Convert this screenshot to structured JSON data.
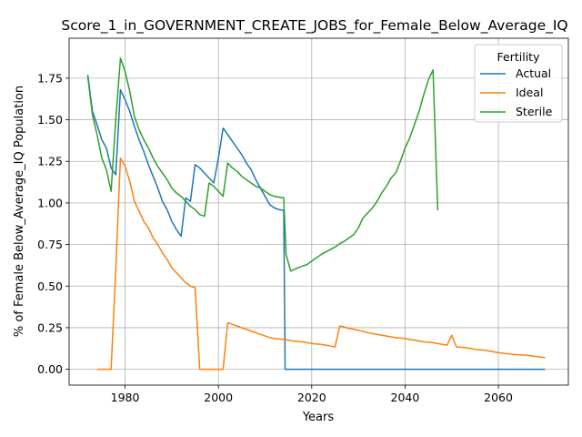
{
  "chart_data": {
    "type": "line",
    "title": "Score_1_in_GOVERNMENT_CREATE_JOBS_for_Female_Below_Average_IQ",
    "xlabel": "Years",
    "ylabel": "% of Female Below_Average_IQ Population",
    "xlim": [
      1968,
      2075
    ],
    "ylim": [
      -0.095,
      1.99
    ],
    "x_ticks": [
      1980,
      2000,
      2020,
      2040,
      2060
    ],
    "y_ticks": [
      0.0,
      0.25,
      0.5,
      0.75,
      1.0,
      1.25,
      1.5,
      1.75
    ],
    "grid": true,
    "legend": {
      "title": "Fertility",
      "placement": "top-right"
    },
    "series": [
      {
        "name": "Actual",
        "color": "#1f77b4",
        "points": [
          [
            1972,
            1.77
          ],
          [
            1973,
            1.55
          ],
          [
            1974,
            1.47
          ],
          [
            1975,
            1.38
          ],
          [
            1976,
            1.33
          ],
          [
            1977,
            1.21
          ],
          [
            1978,
            1.17
          ],
          [
            1979,
            1.68
          ],
          [
            1980,
            1.62
          ],
          [
            1981,
            1.55
          ],
          [
            1982,
            1.46
          ],
          [
            1983,
            1.38
          ],
          [
            1984,
            1.31
          ],
          [
            1985,
            1.23
          ],
          [
            1986,
            1.16
          ],
          [
            1987,
            1.09
          ],
          [
            1988,
            1.01
          ],
          [
            1989,
            0.96
          ],
          [
            1990,
            0.89
          ],
          [
            1991,
            0.84
          ],
          [
            1992,
            0.8
          ],
          [
            1993,
            1.03
          ],
          [
            1994,
            1.01
          ],
          [
            1995,
            1.23
          ],
          [
            1996,
            1.21
          ],
          [
            1997,
            1.18
          ],
          [
            1998,
            1.15
          ],
          [
            1999,
            1.12
          ],
          [
            2000,
            1.27
          ],
          [
            2001,
            1.45
          ],
          [
            2002,
            1.41
          ],
          [
            2003,
            1.37
          ],
          [
            2004,
            1.33
          ],
          [
            2005,
            1.29
          ],
          [
            2006,
            1.24
          ],
          [
            2007,
            1.2
          ],
          [
            2008,
            1.14
          ],
          [
            2009,
            1.09
          ],
          [
            2010,
            1.04
          ],
          [
            2011,
            0.99
          ],
          [
            2012,
            0.97
          ],
          [
            2013,
            0.96
          ],
          [
            2014,
            0.955
          ],
          [
            2014.3,
            0.0
          ],
          [
            2020,
            0.0
          ],
          [
            2030,
            0.0
          ],
          [
            2040,
            0.0
          ],
          [
            2050,
            0.0
          ],
          [
            2060,
            0.0
          ],
          [
            2070,
            0.0
          ]
        ]
      },
      {
        "name": "Ideal",
        "color": "#ff7f0e",
        "points": [
          [
            1974,
            0.0
          ],
          [
            1977,
            0.0
          ],
          [
            1978,
            0.6
          ],
          [
            1979,
            1.27
          ],
          [
            1980,
            1.22
          ],
          [
            1981,
            1.13
          ],
          [
            1982,
            1.01
          ],
          [
            1983,
            0.95
          ],
          [
            1984,
            0.89
          ],
          [
            1985,
            0.85
          ],
          [
            1986,
            0.79
          ],
          [
            1987,
            0.75
          ],
          [
            1988,
            0.7
          ],
          [
            1989,
            0.66
          ],
          [
            1990,
            0.61
          ],
          [
            1991,
            0.58
          ],
          [
            1992,
            0.55
          ],
          [
            1993,
            0.52
          ],
          [
            1994,
            0.5
          ],
          [
            1995,
            0.49
          ],
          [
            1996,
            0.0
          ],
          [
            2000,
            0.0
          ],
          [
            2001,
            0.0
          ],
          [
            2002,
            0.28
          ],
          [
            2003,
            0.27
          ],
          [
            2004,
            0.26
          ],
          [
            2005,
            0.25
          ],
          [
            2006,
            0.24
          ],
          [
            2007,
            0.23
          ],
          [
            2008,
            0.22
          ],
          [
            2009,
            0.21
          ],
          [
            2010,
            0.2
          ],
          [
            2011,
            0.19
          ],
          [
            2012,
            0.185
          ],
          [
            2014,
            0.18
          ],
          [
            2016,
            0.17
          ],
          [
            2018,
            0.165
          ],
          [
            2020,
            0.155
          ],
          [
            2022,
            0.15
          ],
          [
            2024,
            0.14
          ],
          [
            2025,
            0.135
          ],
          [
            2026,
            0.26
          ],
          [
            2027,
            0.255
          ],
          [
            2028,
            0.245
          ],
          [
            2029,
            0.24
          ],
          [
            2030,
            0.235
          ],
          [
            2032,
            0.22
          ],
          [
            2034,
            0.21
          ],
          [
            2036,
            0.2
          ],
          [
            2038,
            0.19
          ],
          [
            2040,
            0.185
          ],
          [
            2042,
            0.175
          ],
          [
            2044,
            0.165
          ],
          [
            2046,
            0.16
          ],
          [
            2048,
            0.15
          ],
          [
            2049,
            0.145
          ],
          [
            2050,
            0.205
          ],
          [
            2051,
            0.135
          ],
          [
            2053,
            0.13
          ],
          [
            2055,
            0.12
          ],
          [
            2057,
            0.115
          ],
          [
            2060,
            0.1
          ],
          [
            2063,
            0.09
          ],
          [
            2066,
            0.085
          ],
          [
            2070,
            0.07
          ]
        ]
      },
      {
        "name": "Sterile",
        "color": "#2ca02c",
        "points": [
          [
            1972,
            1.76
          ],
          [
            1973,
            1.53
          ],
          [
            1974,
            1.41
          ],
          [
            1975,
            1.27
          ],
          [
            1976,
            1.2
          ],
          [
            1977,
            1.07
          ],
          [
            1978,
            1.5
          ],
          [
            1979,
            1.87
          ],
          [
            1980,
            1.79
          ],
          [
            1981,
            1.67
          ],
          [
            1982,
            1.52
          ],
          [
            1983,
            1.44
          ],
          [
            1984,
            1.38
          ],
          [
            1985,
            1.33
          ],
          [
            1986,
            1.27
          ],
          [
            1987,
            1.22
          ],
          [
            1988,
            1.18
          ],
          [
            1989,
            1.14
          ],
          [
            1990,
            1.09
          ],
          [
            1991,
            1.06
          ],
          [
            1992,
            1.04
          ],
          [
            1993,
            1.01
          ],
          [
            1994,
            0.98
          ],
          [
            1995,
            0.96
          ],
          [
            1996,
            0.93
          ],
          [
            1997,
            0.92
          ],
          [
            1998,
            1.12
          ],
          [
            1999,
            1.1
          ],
          [
            2000,
            1.07
          ],
          [
            2001,
            1.04
          ],
          [
            2002,
            1.24
          ],
          [
            2003,
            1.21
          ],
          [
            2004,
            1.19
          ],
          [
            2005,
            1.16
          ],
          [
            2006,
            1.14
          ],
          [
            2007,
            1.12
          ],
          [
            2008,
            1.1
          ],
          [
            2009,
            1.09
          ],
          [
            2010,
            1.07
          ],
          [
            2011,
            1.05
          ],
          [
            2012,
            1.04
          ],
          [
            2013,
            1.035
          ],
          [
            2014,
            1.03
          ],
          [
            2014.5,
            0.69
          ],
          [
            2015.5,
            0.59
          ],
          [
            2017,
            0.61
          ],
          [
            2018,
            0.62
          ],
          [
            2019,
            0.63
          ],
          [
            2020,
            0.65
          ],
          [
            2021,
            0.67
          ],
          [
            2022,
            0.69
          ],
          [
            2023,
            0.705
          ],
          [
            2024,
            0.72
          ],
          [
            2025,
            0.735
          ],
          [
            2026,
            0.755
          ],
          [
            2027,
            0.77
          ],
          [
            2028,
            0.79
          ],
          [
            2029,
            0.81
          ],
          [
            2030,
            0.85
          ],
          [
            2031,
            0.91
          ],
          [
            2032,
            0.94
          ],
          [
            2033,
            0.97
          ],
          [
            2034,
            1.01
          ],
          [
            2035,
            1.06
          ],
          [
            2036,
            1.1
          ],
          [
            2037,
            1.15
          ],
          [
            2038,
            1.18
          ],
          [
            2039,
            1.25
          ],
          [
            2040,
            1.33
          ],
          [
            2041,
            1.39
          ],
          [
            2042,
            1.47
          ],
          [
            2043,
            1.55
          ],
          [
            2044,
            1.65
          ],
          [
            2045,
            1.74
          ],
          [
            2046,
            1.8
          ],
          [
            2047,
            0.955
          ]
        ]
      }
    ]
  }
}
